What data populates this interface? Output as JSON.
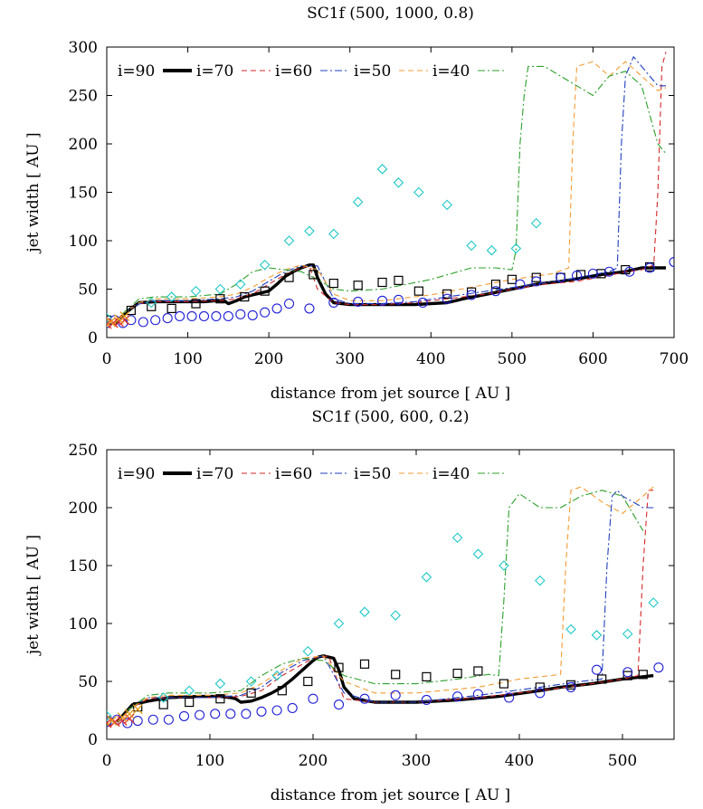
{
  "chart_data": [
    {
      "type": "line",
      "title": "SC1f (500, 1000, 0.8)",
      "xlabel": "distance from jet source [ AU ]",
      "ylabel": "jet width [ AU ]",
      "xlim": [
        0,
        700
      ],
      "ylim": [
        0,
        300
      ],
      "xticks": [
        0,
        100,
        200,
        300,
        400,
        500,
        600,
        700
      ],
      "yticks": [
        0,
        50,
        100,
        150,
        200,
        250,
        300
      ],
      "legend_position": "top",
      "series": [
        {
          "name": "i=90",
          "style": "line",
          "color": "#000000",
          "x": [
            10,
            30,
            40,
            60,
            90,
            120,
            135,
            145,
            150,
            160,
            170,
            180,
            190,
            200,
            210,
            220,
            230,
            240,
            250,
            255,
            260,
            270,
            280,
            300,
            320,
            340,
            380,
            420,
            440,
            470,
            500,
            530,
            560,
            590,
            610,
            640,
            660,
            690
          ],
          "y": [
            15,
            30,
            36,
            37,
            37,
            37,
            38,
            38,
            35,
            38,
            42,
            44,
            46,
            48,
            55,
            63,
            68,
            72,
            75,
            75,
            62,
            45,
            36,
            34,
            34,
            34,
            34,
            36,
            40,
            45,
            50,
            55,
            58,
            62,
            65,
            68,
            72,
            72
          ]
        },
        {
          "name": "i=70",
          "style": "dashed",
          "color": "#d62728",
          "x": [
            20,
            40,
            60,
            100,
            140,
            160,
            180,
            200,
            220,
            240,
            250,
            260,
            280,
            300,
            340,
            380,
            420,
            470,
            500,
            540,
            580,
            620,
            640,
            660,
            675,
            680,
            685,
            690
          ],
          "y": [
            25,
            35,
            37,
            37,
            38,
            40,
            45,
            55,
            65,
            72,
            74,
            50,
            36,
            34,
            34,
            36,
            40,
            45,
            50,
            55,
            58,
            64,
            68,
            70,
            75,
            150,
            280,
            295
          ]
        },
        {
          "name": "i=60",
          "style": "dash-dot",
          "color": "#1f3fbf",
          "x": [
            20,
            40,
            60,
            100,
            140,
            160,
            180,
            200,
            220,
            240,
            260,
            280,
            300,
            340,
            380,
            420,
            470,
            520,
            570,
            600,
            620,
            630,
            635,
            640,
            650,
            660,
            680,
            690
          ],
          "y": [
            25,
            35,
            38,
            38,
            40,
            42,
            48,
            58,
            68,
            74,
            74,
            40,
            35,
            35,
            37,
            42,
            48,
            54,
            60,
            65,
            68,
            72,
            200,
            270,
            290,
            280,
            260,
            260
          ]
        },
        {
          "name": "i=50",
          "style": "dashed",
          "color": "#f59b30",
          "x": [
            20,
            40,
            60,
            100,
            140,
            160,
            180,
            200,
            220,
            240,
            260,
            280,
            300,
            340,
            400,
            450,
            500,
            550,
            570,
            575,
            580,
            600,
            620,
            640,
            660,
            680,
            690
          ],
          "y": [
            25,
            36,
            40,
            40,
            42,
            45,
            52,
            62,
            70,
            75,
            70,
            45,
            38,
            38,
            44,
            52,
            60,
            66,
            72,
            200,
            280,
            285,
            270,
            285,
            270,
            255,
            258
          ]
        },
        {
          "name": "i=40",
          "style": "dash-dot",
          "color": "#2ca02c",
          "x": [
            20,
            40,
            60,
            100,
            140,
            160,
            180,
            200,
            220,
            240,
            260,
            280,
            300,
            340,
            400,
            450,
            480,
            500,
            505,
            510,
            515,
            520,
            540,
            580,
            600,
            620,
            640,
            660,
            680,
            690
          ],
          "y": [
            25,
            40,
            42,
            42,
            45,
            55,
            68,
            72,
            70,
            68,
            60,
            50,
            48,
            50,
            60,
            72,
            72,
            70,
            90,
            200,
            250,
            280,
            280,
            260,
            250,
            270,
            275,
            260,
            200,
            190
          ]
        },
        {
          "name": "open squares",
          "style": "marker",
          "marker": "square",
          "color": "#000000",
          "x": [
            0,
            30,
            55,
            80,
            110,
            140,
            170,
            195,
            225,
            255,
            280,
            310,
            340,
            360,
            385,
            420,
            450,
            480,
            500,
            530,
            560,
            585,
            610,
            640,
            670
          ],
          "y": [
            18,
            28,
            32,
            30,
            35,
            40,
            42,
            48,
            62,
            65,
            56,
            54,
            57,
            59,
            48,
            45,
            47,
            55,
            60,
            62,
            62,
            65,
            66,
            70,
            73
          ]
        },
        {
          "name": "open circles",
          "style": "marker",
          "marker": "circle",
          "color": "#2020d8",
          "x": [
            0,
            10,
            20,
            30,
            45,
            60,
            75,
            90,
            105,
            120,
            135,
            150,
            165,
            180,
            195,
            210,
            225,
            250,
            280,
            310,
            340,
            360,
            390,
            420,
            450,
            480,
            510,
            530,
            560,
            580,
            600,
            620,
            645,
            670,
            700
          ],
          "y": [
            15,
            18,
            15,
            18,
            16,
            18,
            20,
            22,
            22,
            22,
            22,
            22,
            24,
            23,
            26,
            30,
            35,
            30,
            36,
            37,
            38,
            39,
            36,
            40,
            44,
            48,
            55,
            58,
            62,
            64,
            66,
            68,
            68,
            72,
            78
          ]
        },
        {
          "name": "cyan diamonds",
          "style": "marker",
          "marker": "diamond",
          "color": "#20c8c8",
          "x": [
            0,
            55,
            80,
            110,
            140,
            165,
            195,
            225,
            250,
            280,
            310,
            340,
            360,
            385,
            420,
            450,
            475,
            505,
            530
          ],
          "y": [
            20,
            36,
            42,
            48,
            50,
            55,
            75,
            100,
            110,
            107,
            140,
            174,
            160,
            150,
            137,
            95,
            90,
            92,
            118
          ]
        },
        {
          "name": "crosses",
          "style": "marker",
          "marker": "cross",
          "color": "#e03030",
          "x": [
            0,
            8,
            15,
            22
          ],
          "y": [
            14,
            15,
            16,
            18
          ]
        },
        {
          "name": "x markers",
          "style": "marker",
          "marker": "x",
          "color": "#e8a020",
          "x": [
            5,
            15,
            22
          ],
          "y": [
            16,
            19,
            22
          ]
        }
      ]
    },
    {
      "type": "line",
      "title": "SC1f (500, 600, 0.2)",
      "xlabel": "distance from jet source [ AU ]",
      "ylabel": "jet width [ AU ]",
      "xlim": [
        0,
        550
      ],
      "ylim": [
        0,
        250
      ],
      "xticks": [
        0,
        100,
        200,
        300,
        400,
        500
      ],
      "yticks": [
        0,
        50,
        100,
        150,
        200,
        250
      ],
      "legend_position": "top",
      "series": [
        {
          "name": "i=90",
          "style": "line",
          "color": "#000000",
          "x": [
            10,
            25,
            40,
            60,
            90,
            110,
            120,
            125,
            130,
            140,
            150,
            160,
            170,
            180,
            190,
            200,
            205,
            210,
            220,
            225,
            230,
            240,
            260,
            300,
            340,
            380,
            420,
            440,
            470,
            500,
            530
          ],
          "y": [
            15,
            30,
            33,
            36,
            37,
            37,
            36,
            35,
            32,
            33,
            36,
            40,
            45,
            52,
            60,
            68,
            71,
            72,
            70,
            60,
            45,
            35,
            32,
            32,
            34,
            37,
            42,
            45,
            48,
            52,
            55
          ]
        },
        {
          "name": "i=70",
          "style": "dashed",
          "color": "#d62728",
          "x": [
            20,
            40,
            60,
            100,
            130,
            150,
            170,
            190,
            200,
            215,
            230,
            260,
            300,
            360,
            420,
            470,
            500,
            515,
            520,
            525,
            530
          ],
          "y": [
            25,
            35,
            36,
            36,
            37,
            42,
            55,
            65,
            70,
            72,
            35,
            32,
            32,
            36,
            42,
            48,
            52,
            55,
            150,
            215,
            215
          ]
        },
        {
          "name": "i=60",
          "style": "dash-dot",
          "color": "#1f3fbf",
          "x": [
            20,
            40,
            60,
            100,
            130,
            150,
            170,
            190,
            210,
            230,
            260,
            300,
            360,
            420,
            460,
            480,
            485,
            490,
            495,
            500,
            510,
            520,
            530
          ],
          "y": [
            25,
            36,
            36,
            36,
            38,
            45,
            58,
            68,
            72,
            40,
            32,
            32,
            38,
            45,
            50,
            52,
            150,
            210,
            215,
            210,
            205,
            200,
            200
          ]
        },
        {
          "name": "i=50",
          "style": "dashed",
          "color": "#f59b30",
          "x": [
            20,
            40,
            60,
            100,
            130,
            150,
            170,
            190,
            210,
            230,
            260,
            300,
            360,
            400,
            430,
            440,
            445,
            450,
            460,
            480,
            500,
            520,
            530
          ],
          "y": [
            25,
            36,
            38,
            38,
            40,
            48,
            60,
            70,
            72,
            50,
            40,
            40,
            45,
            52,
            55,
            56,
            150,
            215,
            218,
            205,
            195,
            210,
            218
          ]
        },
        {
          "name": "i=40",
          "style": "dash-dot",
          "color": "#2ca02c",
          "x": [
            20,
            40,
            60,
            100,
            130,
            150,
            170,
            190,
            210,
            230,
            260,
            300,
            340,
            370,
            380,
            385,
            390,
            400,
            420,
            440,
            460,
            480,
            500,
            520
          ],
          "y": [
            25,
            38,
            40,
            40,
            42,
            55,
            65,
            70,
            68,
            55,
            48,
            48,
            52,
            56,
            55,
            120,
            200,
            212,
            200,
            200,
            210,
            215,
            210,
            180
          ]
        },
        {
          "name": "open squares",
          "style": "marker",
          "marker": "square",
          "color": "#000000",
          "x": [
            0,
            30,
            55,
            80,
            110,
            140,
            170,
            195,
            225,
            250,
            280,
            310,
            340,
            360,
            385,
            420,
            450,
            480,
            505,
            520
          ],
          "y": [
            16,
            28,
            30,
            32,
            35,
            40,
            42,
            50,
            62,
            65,
            56,
            54,
            57,
            59,
            48,
            45,
            47,
            52,
            55,
            56
          ]
        },
        {
          "name": "open circles",
          "style": "marker",
          "marker": "circle",
          "color": "#2020d8",
          "x": [
            0,
            10,
            20,
            30,
            45,
            60,
            75,
            90,
            105,
            120,
            135,
            150,
            165,
            180,
            200,
            225,
            250,
            280,
            310,
            340,
            360,
            390,
            420,
            450,
            475,
            505,
            535
          ],
          "y": [
            15,
            17,
            14,
            16,
            17,
            17,
            20,
            21,
            22,
            22,
            22,
            24,
            25,
            27,
            35,
            30,
            35,
            38,
            34,
            37,
            39,
            36,
            40,
            45,
            60,
            58,
            62
          ]
        },
        {
          "name": "cyan diamonds",
          "style": "marker",
          "marker": "diamond",
          "color": "#20c8c8",
          "x": [
            0,
            55,
            80,
            110,
            140,
            165,
            195,
            225,
            250,
            280,
            310,
            340,
            360,
            385,
            420,
            450,
            475,
            505,
            530
          ],
          "y": [
            20,
            36,
            42,
            48,
            50,
            55,
            76,
            100,
            110,
            107,
            140,
            174,
            160,
            150,
            137,
            95,
            90,
            91,
            118
          ]
        },
        {
          "name": "crosses",
          "style": "marker",
          "marker": "cross",
          "color": "#e03030",
          "x": [
            0,
            8,
            15,
            22
          ],
          "y": [
            14,
            15,
            16,
            18
          ]
        },
        {
          "name": "x markers",
          "style": "marker",
          "marker": "x",
          "color": "#e8a020",
          "x": [
            5,
            15,
            22,
            30
          ],
          "y": [
            16,
            19,
            22,
            26
          ]
        }
      ]
    }
  ]
}
